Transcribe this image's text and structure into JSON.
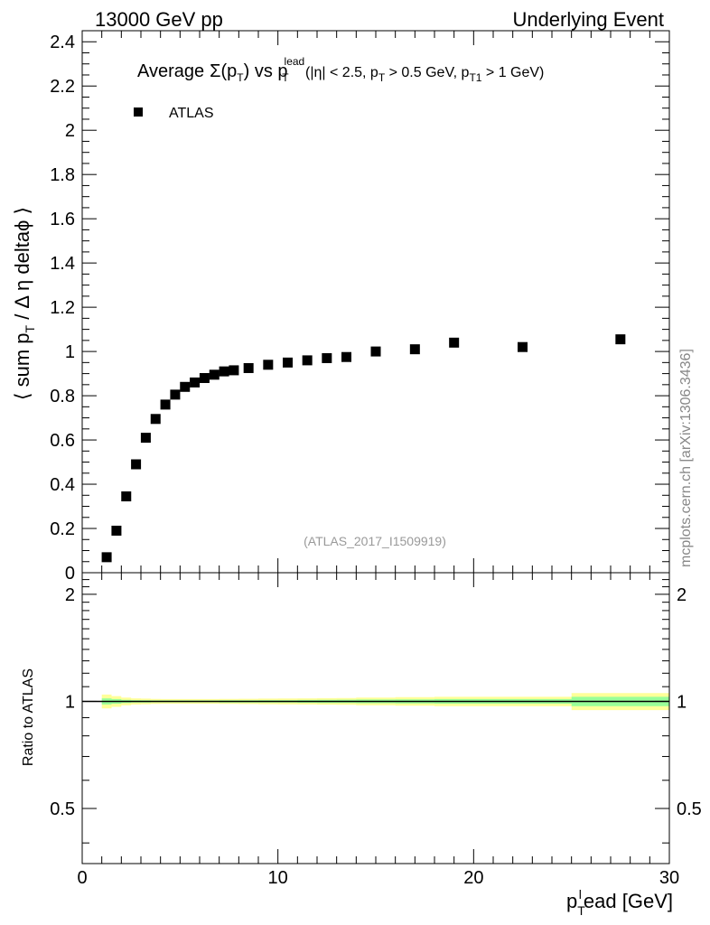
{
  "header": {
    "left": "13000 GeV pp",
    "right": "Underlying Event"
  },
  "side_label": "mcplots.cern.ch [arXiv:1306.3436]",
  "analysis_id": "(ATLAS_2017_I1509919)",
  "colors": {
    "data": "#000000",
    "band_outer": "#ffff99",
    "band_inner": "#99ff99",
    "ref_line": "#000000",
    "analysis_text": "#999999",
    "side_text": "#888888"
  },
  "chart_data": [
    {
      "type": "scatter",
      "title_parts": {
        "average": "Average",
        "sigma": "Σ(p",
        "sigma_sub": "T",
        "vs": ") vs p",
        "sup_lead": "lead",
        "sub_t": "T",
        "cuts1": " (|η| < 2.5, p",
        "cuts_sub": "T",
        "cuts2": " > 0.5 GeV, p",
        "cuts_sub2": "T1",
        "cuts3": " > 1 GeV)"
      },
      "ylabel_parts": {
        "a": "⟨ sum p",
        "sub": "T",
        "b": " / Δ η deltaϕ ⟩"
      },
      "xlim": [
        0,
        30
      ],
      "ylim": [
        0,
        2.45
      ],
      "y_ticks": [
        "0",
        "0.2",
        "0.4",
        "0.6",
        "0.8",
        "1",
        "1.2",
        "1.4",
        "1.6",
        "1.8",
        "2",
        "2.2",
        "2.4"
      ],
      "y_tick_values": [
        0,
        0.2,
        0.4,
        0.6,
        0.8,
        1.0,
        1.2,
        1.4,
        1.6,
        1.8,
        2.0,
        2.2,
        2.4
      ],
      "legend": {
        "label": "ATLAS",
        "position": "top-left"
      },
      "series": [
        {
          "name": "ATLAS",
          "x": [
            1.25,
            1.75,
            2.25,
            2.75,
            3.25,
            3.75,
            4.25,
            4.75,
            5.25,
            5.75,
            6.25,
            6.75,
            7.25,
            7.75,
            8.5,
            9.5,
            10.5,
            11.5,
            12.5,
            13.5,
            15.0,
            17.0,
            19.0,
            22.5,
            27.5
          ],
          "y": [
            0.07,
            0.19,
            0.345,
            0.49,
            0.61,
            0.695,
            0.76,
            0.805,
            0.84,
            0.86,
            0.88,
            0.895,
            0.91,
            0.915,
            0.925,
            0.94,
            0.95,
            0.96,
            0.97,
            0.975,
            1.0,
            1.01,
            1.04,
            1.02,
            1.055
          ]
        }
      ]
    },
    {
      "type": "area",
      "ylabel": "Ratio to ATLAS",
      "xlabel_parts": {
        "a": "p",
        "sub": "T",
        "sup": "l",
        "b": "ead [GeV]"
      },
      "xlim": [
        0,
        30
      ],
      "ylim": [
        0.35,
        2.3
      ],
      "y_ticks": [
        "0.5",
        "1",
        "2"
      ],
      "y_tick_values": [
        0.5,
        1.0,
        2.0
      ],
      "x_ticks": [
        "0",
        "10",
        "20",
        "30"
      ],
      "x_tick_values": [
        0,
        10,
        20,
        30
      ],
      "reference": 1.0,
      "bands": {
        "edges": [
          1.0,
          1.5,
          2.0,
          2.5,
          3.0,
          3.5,
          4.0,
          4.5,
          5.0,
          5.5,
          6.0,
          6.5,
          7.0,
          7.5,
          8.0,
          9.0,
          10.0,
          11.0,
          12.0,
          13.0,
          14.0,
          16.0,
          18.0,
          20.0,
          25.0,
          30.0
        ],
        "outer": [
          0.045,
          0.035,
          0.025,
          0.02,
          0.018,
          0.016,
          0.015,
          0.015,
          0.015,
          0.015,
          0.015,
          0.015,
          0.016,
          0.016,
          0.017,
          0.018,
          0.019,
          0.02,
          0.021,
          0.022,
          0.025,
          0.028,
          0.03,
          0.03,
          0.055
        ],
        "inner": [
          0.02,
          0.015,
          0.01,
          0.008,
          0.007,
          0.006,
          0.006,
          0.006,
          0.006,
          0.006,
          0.006,
          0.006,
          0.007,
          0.007,
          0.007,
          0.008,
          0.008,
          0.009,
          0.01,
          0.011,
          0.012,
          0.013,
          0.015,
          0.015,
          0.03
        ]
      }
    }
  ]
}
